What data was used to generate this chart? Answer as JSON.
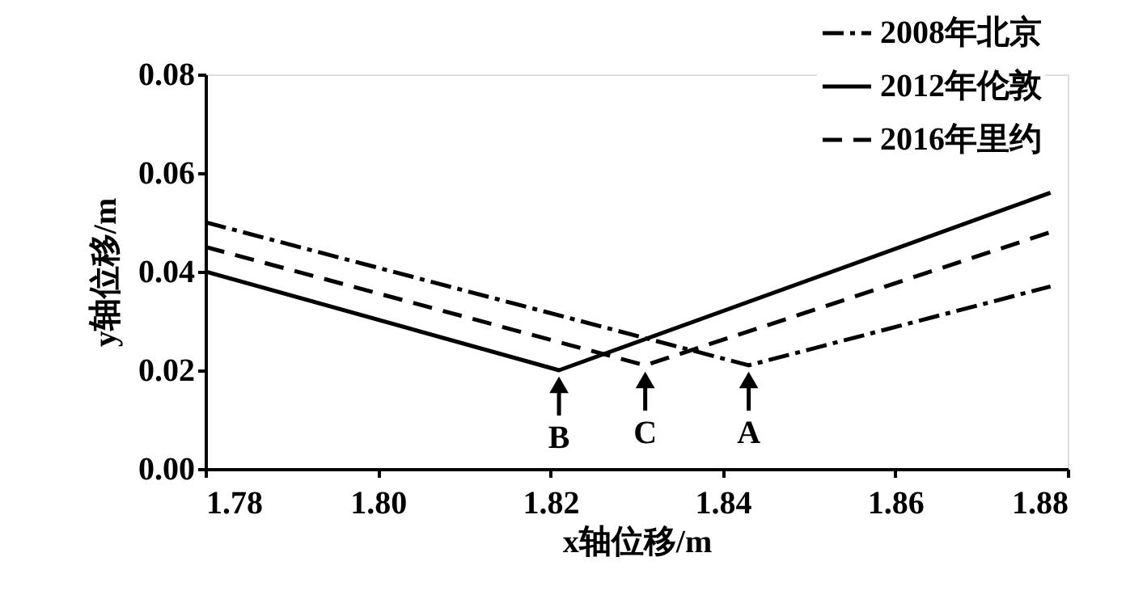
{
  "chart_data": {
    "type": "line",
    "xlabel": "x轴位移/m",
    "ylabel": "y轴位移/m",
    "xlim": [
      1.78,
      1.88
    ],
    "xticks": [
      1.78,
      {
        "value": 1.8,
        "label": "1.80"
      },
      1.82,
      1.84,
      1.86,
      1.88
    ],
    "ylim": [
      0,
      0.08
    ],
    "yticks": [
      {
        "value": 0,
        "label": "0.00"
      },
      {
        "value": 0.02,
        "label": "0.02"
      },
      {
        "value": 0.04,
        "label": "0.04"
      },
      {
        "value": 0.06,
        "label": "0.06"
      },
      {
        "value": 0.08,
        "label": "0.08"
      }
    ],
    "series": [
      {
        "name": "2008年北京",
        "color": "#000000",
        "line_style": "dashdot",
        "x": [
          1.78,
          1.843,
          1.878
        ],
        "values": [
          0.05,
          0.021,
          0.037
        ]
      },
      {
        "name": "2012年伦敦",
        "color": "#000000",
        "line_style": "solid",
        "x": [
          1.78,
          1.821,
          1.878
        ],
        "values": [
          0.04,
          0.02,
          0.056
        ]
      },
      {
        "name": "2016年里约",
        "color": "#000000",
        "line_style": "dashed",
        "x": [
          1.78,
          1.831,
          1.878
        ],
        "values": [
          0.045,
          0.021,
          0.048
        ]
      }
    ],
    "annotations": [
      {
        "text": "B",
        "x": 1.821,
        "y": 0.02
      },
      {
        "text": "C",
        "x": 1.831,
        "y": 0.021
      },
      {
        "text": "A",
        "x": 1.843,
        "y": 0.021
      }
    ],
    "legend": "top right",
    "grid": false,
    "marker": "none"
  }
}
